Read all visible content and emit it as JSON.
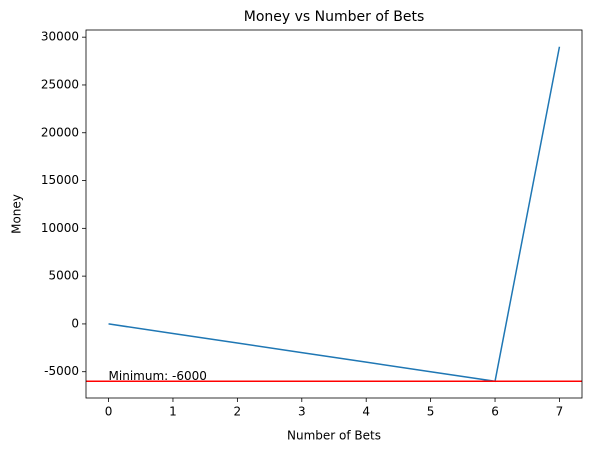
{
  "chart_data": {
    "type": "line",
    "title": "Money vs Number of Bets",
    "x_label": "Number of Bets",
    "y_label": "Money",
    "x": [
      0,
      1,
      2,
      3,
      4,
      5,
      6,
      7
    ],
    "series": [
      {
        "color": "#1f77b4",
        "values": [
          0,
          -1000,
          -2000,
          -3000,
          -4000,
          -5000,
          -6000,
          29000
        ]
      }
    ],
    "hline": {
      "value": -6000,
      "color": "#ff0000"
    },
    "annotations": [
      {
        "text": "Minimum: -6000",
        "x": 0,
        "y": -6000
      }
    ],
    "xlim": [
      -0.35,
      7.35
    ],
    "ylim": [
      -7750,
      30750
    ],
    "xticks": [
      0,
      1,
      2,
      3,
      4,
      5,
      6,
      7
    ],
    "yticks": [
      -5000,
      0,
      5000,
      10000,
      15000,
      20000,
      25000,
      30000
    ],
    "grid": false
  }
}
